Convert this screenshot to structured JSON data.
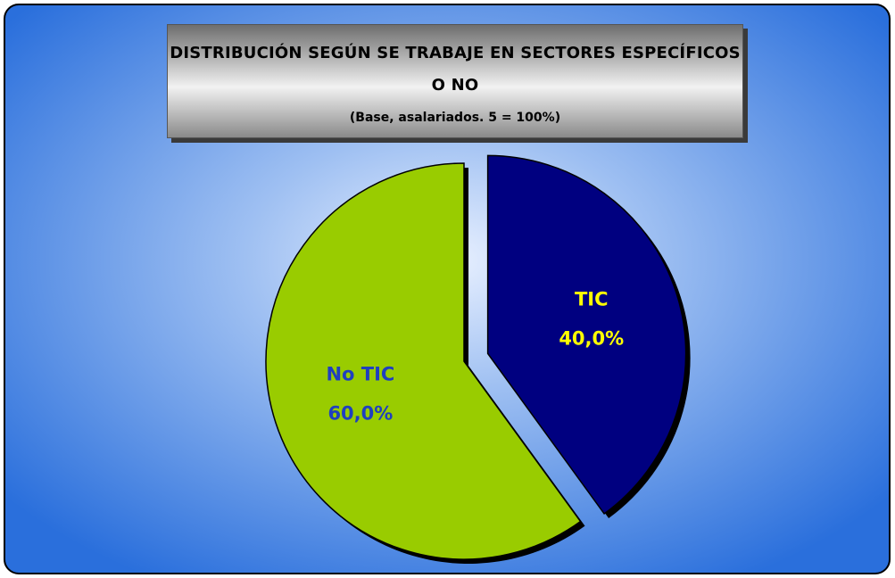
{
  "chart_data": {
    "type": "pie",
    "title": "DISTRIBUCIÓN SEGÚN SE TRABAJE EN SECTORES ESPECÍFICOS O NO",
    "subtitle": "(Base, asalariados. 5 = 100%)",
    "categories": [
      "TIC",
      "No TIC"
    ],
    "values": [
      40,
      60
    ],
    "value_labels": [
      "40,0%",
      "60,0%"
    ],
    "colors": [
      "#000080",
      "#99cc00"
    ],
    "label_colors": [
      "#ffff00",
      "#1f3fbf"
    ],
    "exploded": [
      true,
      false
    ]
  }
}
